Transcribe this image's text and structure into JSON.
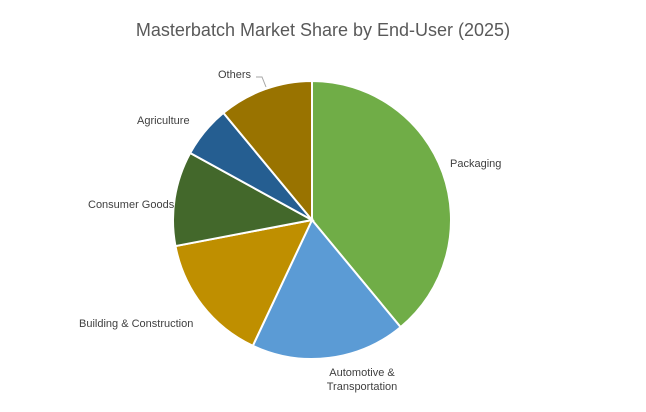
{
  "chart_data": {
    "type": "pie",
    "title": "Masterbatch Market Share by End-User (2025)",
    "slices": [
      {
        "label": "Packaging",
        "lines": [
          "Packaging"
        ],
        "value": 39,
        "color": "#70ad47"
      },
      {
        "label": "Automotive & Transportation",
        "lines": [
          "Automotive &",
          "Transportation"
        ],
        "value": 18,
        "color": "#5b9bd5"
      },
      {
        "label": "Building & Construction",
        "lines": [
          "Building & Construction"
        ],
        "value": 15,
        "color": "#bf8f00"
      },
      {
        "label": "Consumer Goods",
        "lines": [
          "Consumer Goods"
        ],
        "value": 11,
        "color": "#43682b"
      },
      {
        "label": "Agriculture",
        "lines": [
          "Agriculture"
        ],
        "value": 6,
        "color": "#255e91"
      },
      {
        "label": "Others",
        "lines": [
          "Others"
        ],
        "value": 11,
        "color": "#997300"
      }
    ],
    "start_angle_deg": 0,
    "direction": "clockwise",
    "legend": "none"
  }
}
